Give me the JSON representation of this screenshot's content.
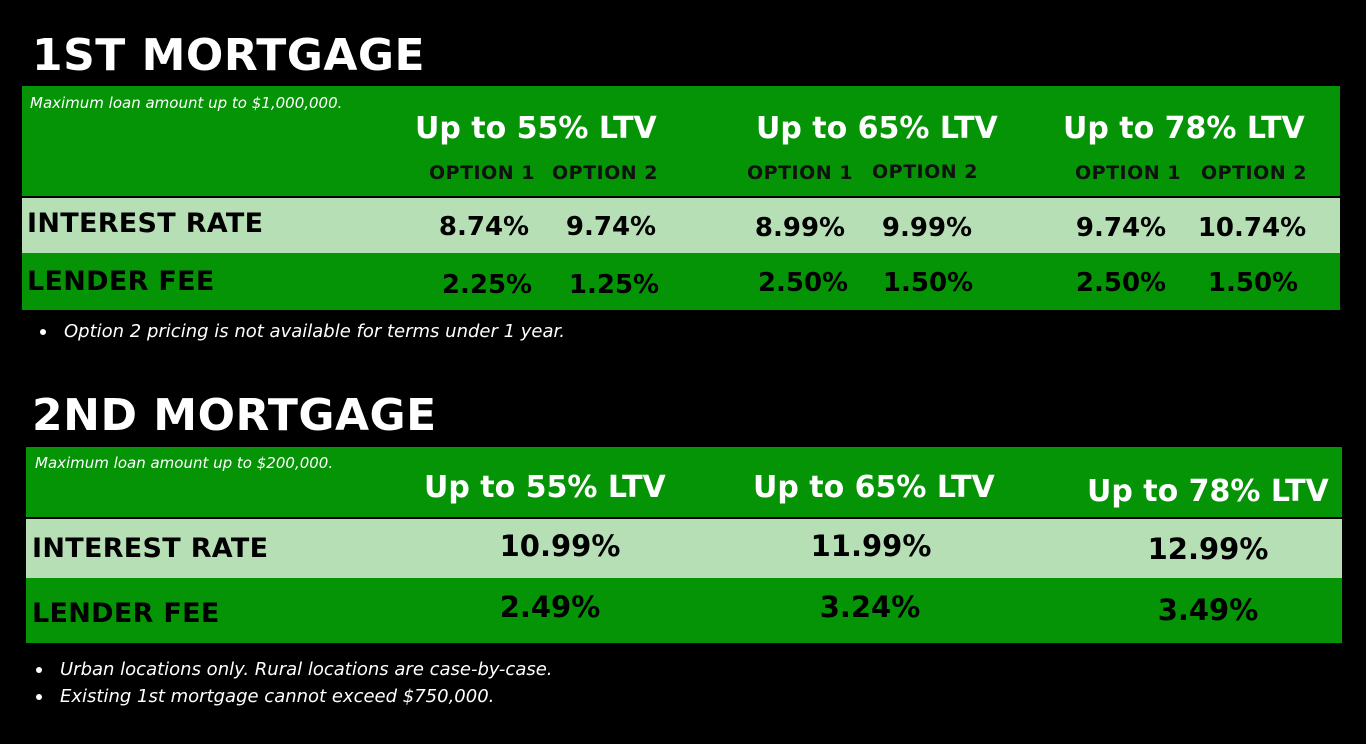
{
  "first": {
    "title": "1ST MORTGAGE",
    "max_note": "Maximum loan amount up to $1,000,000.",
    "ltv_headers": [
      "Up to 55% LTV",
      "Up to 65% LTV",
      "Up to 78% LTV"
    ],
    "option_labels": [
      "OPTION 1",
      "OPTION 2"
    ],
    "rows": [
      {
        "label": "INTEREST RATE",
        "values": [
          "8.74%",
          "9.74%",
          "8.99%",
          "9.99%",
          "9.74%",
          "10.74%"
        ]
      },
      {
        "label": "LENDER FEE",
        "values": [
          "2.25%",
          "1.25%",
          "2.50%",
          "1.50%",
          "2.50%",
          "1.50%"
        ]
      }
    ],
    "notes": [
      "Option 2 pricing is not available for terms under 1 year."
    ]
  },
  "second": {
    "title": "2ND MORTGAGE",
    "max_note": "Maximum loan amount up to $200,000.",
    "ltv_headers": [
      "Up to 55% LTV",
      "Up to 65% LTV",
      "Up to 78% LTV"
    ],
    "rows": [
      {
        "label": "INTEREST RATE",
        "values": [
          "10.99%",
          "11.99%",
          "12.99%"
        ]
      },
      {
        "label": "LENDER FEE",
        "values": [
          "2.49%",
          "3.24%",
          "3.49%"
        ]
      }
    ],
    "notes": [
      "Urban locations only. Rural locations are case-by-case.",
      "Existing 1st mortgage cannot exceed $750,000."
    ]
  },
  "colors": {
    "background": "#000000",
    "header_green": "#059405",
    "light_row": "#b6dfb6"
  }
}
